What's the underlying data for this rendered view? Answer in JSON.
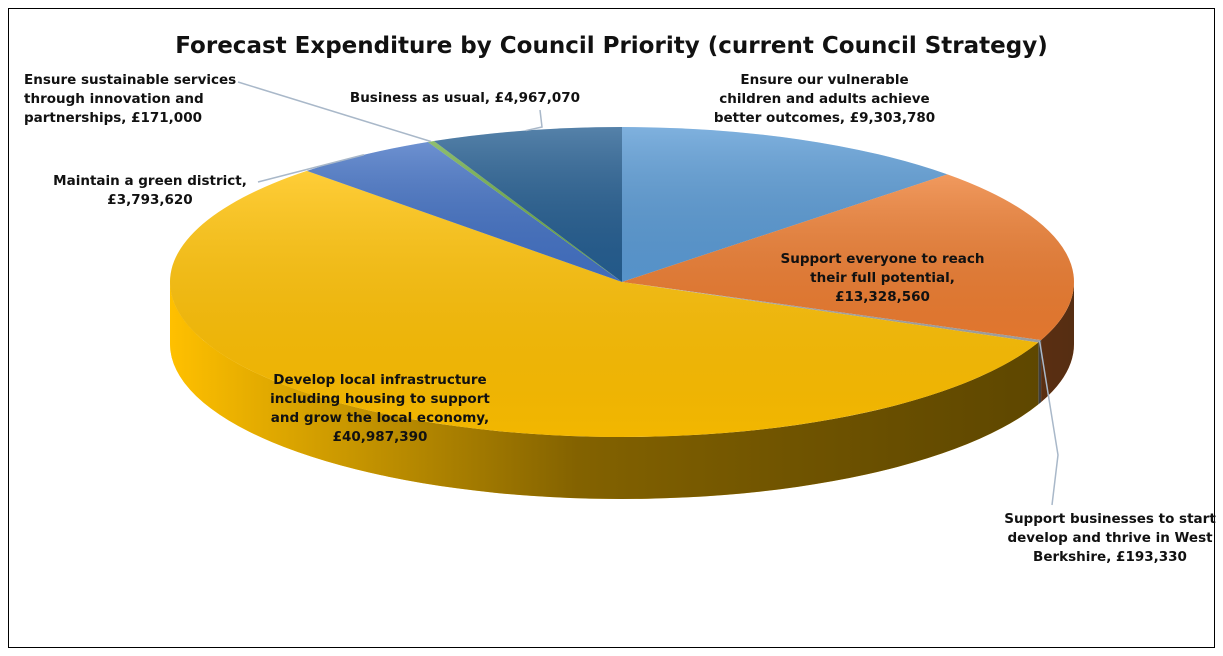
{
  "chart_data": {
    "type": "pie",
    "title": "Forecast Expenditure by Council Priority (current Council Strategy)",
    "slices": [
      {
        "label": "Ensure our vulnerable children and adults achieve better outcomes",
        "value": 9303780,
        "value_text": "£9,303,780",
        "color": "#5b9bd5",
        "dark": "#2e5f91"
      },
      {
        "label": "Support everyone to reach their full potential",
        "value": 13328560,
        "value_text": "£13,328,560",
        "color": "#ed7d31",
        "dark": "#8a3f10"
      },
      {
        "label": "Support businesses to start develop and thrive in West Berkshire",
        "value": 193330,
        "value_text": "£193,330",
        "color": "#a5a5a5",
        "dark": "#5e5e5e"
      },
      {
        "label": "Develop local infrastructure including housing to support and grow the local economy",
        "value": 40987390,
        "value_text": "£40,987,390",
        "color": "#ffc000",
        "dark": "#5a4300"
      },
      {
        "label": "Maintain a green district",
        "value": 3793620,
        "value_text": "£3,793,620",
        "color": "#4472c4",
        "dark": "#203f7a"
      },
      {
        "label": "Ensure sustainable services through innovation and partnerships",
        "value": 171000,
        "value_text": "£171,000",
        "color": "#70ad47",
        "dark": "#3b6424"
      },
      {
        "label": "Business as usual",
        "value": 4967070,
        "value_text": "£4,967,070",
        "color": "#255e91",
        "dark": "#12304b"
      }
    ],
    "data_labels": [
      "Ensure our vulnerable\nchildren and adults achieve\nbetter outcomes, £9,303,780",
      "Support everyone to reach\ntheir full potential,\n£13,328,560",
      "Support businesses to start\ndevelop and thrive in West\nBerkshire, £193,330",
      "Develop local infrastructure\nincluding housing to support\nand grow the local economy,\n£40,987,390",
      "Maintain a green district,\n£3,793,620",
      "Ensure sustainable services\nthrough innovation and\npartnerships, £171,000",
      "Business as usual, £4,967,070"
    ],
    "legend": "none"
  }
}
